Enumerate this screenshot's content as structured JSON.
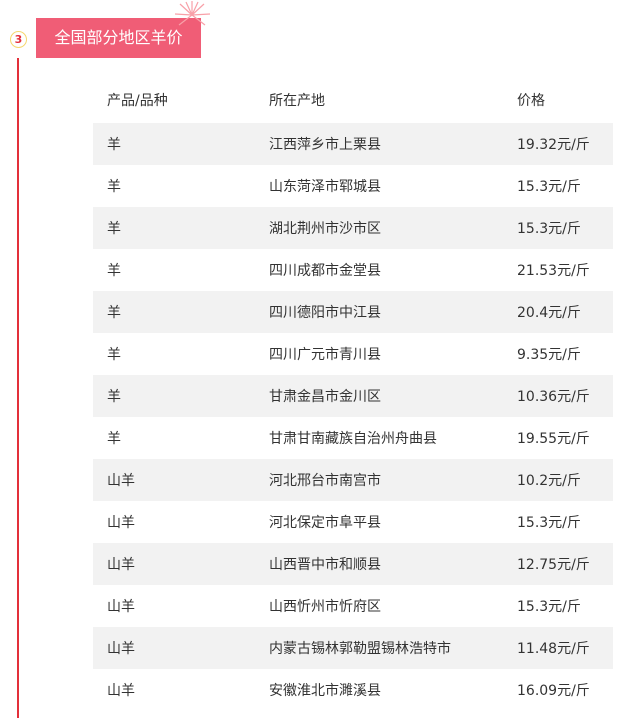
{
  "section": {
    "number": "3",
    "title": "全国部分地区羊价",
    "accent": "#f05d76"
  },
  "table": {
    "headers": [
      "产品/品种",
      "所在产地",
      "价格"
    ],
    "rows": [
      [
        "羊",
        "江西萍乡市上栗县",
        "19.32元/斤"
      ],
      [
        "羊",
        "山东菏泽市郓城县",
        "15.3元/斤"
      ],
      [
        "羊",
        "湖北荆州市沙市区",
        "15.3元/斤"
      ],
      [
        "羊",
        "四川成都市金堂县",
        "21.53元/斤"
      ],
      [
        "羊",
        "四川德阳市中江县",
        "20.4元/斤"
      ],
      [
        "羊",
        "四川广元市青川县",
        "9.35元/斤"
      ],
      [
        "羊",
        "甘肃金昌市金川区",
        "10.36元/斤"
      ],
      [
        "羊",
        "甘肃甘南藏族自治州舟曲县",
        "19.55元/斤"
      ],
      [
        "山羊",
        "河北邢台市南宫市",
        "10.2元/斤"
      ],
      [
        "山羊",
        "河北保定市阜平县",
        "15.3元/斤"
      ],
      [
        "山羊",
        "山西晋中市和顺县",
        "12.75元/斤"
      ],
      [
        "山羊",
        "山西忻州市忻府区",
        "15.3元/斤"
      ],
      [
        "山羊",
        "内蒙古锡林郭勒盟锡林浩特市",
        "11.48元/斤"
      ],
      [
        "山羊",
        "安徽淮北市濉溪县",
        "16.09元/斤"
      ]
    ]
  }
}
